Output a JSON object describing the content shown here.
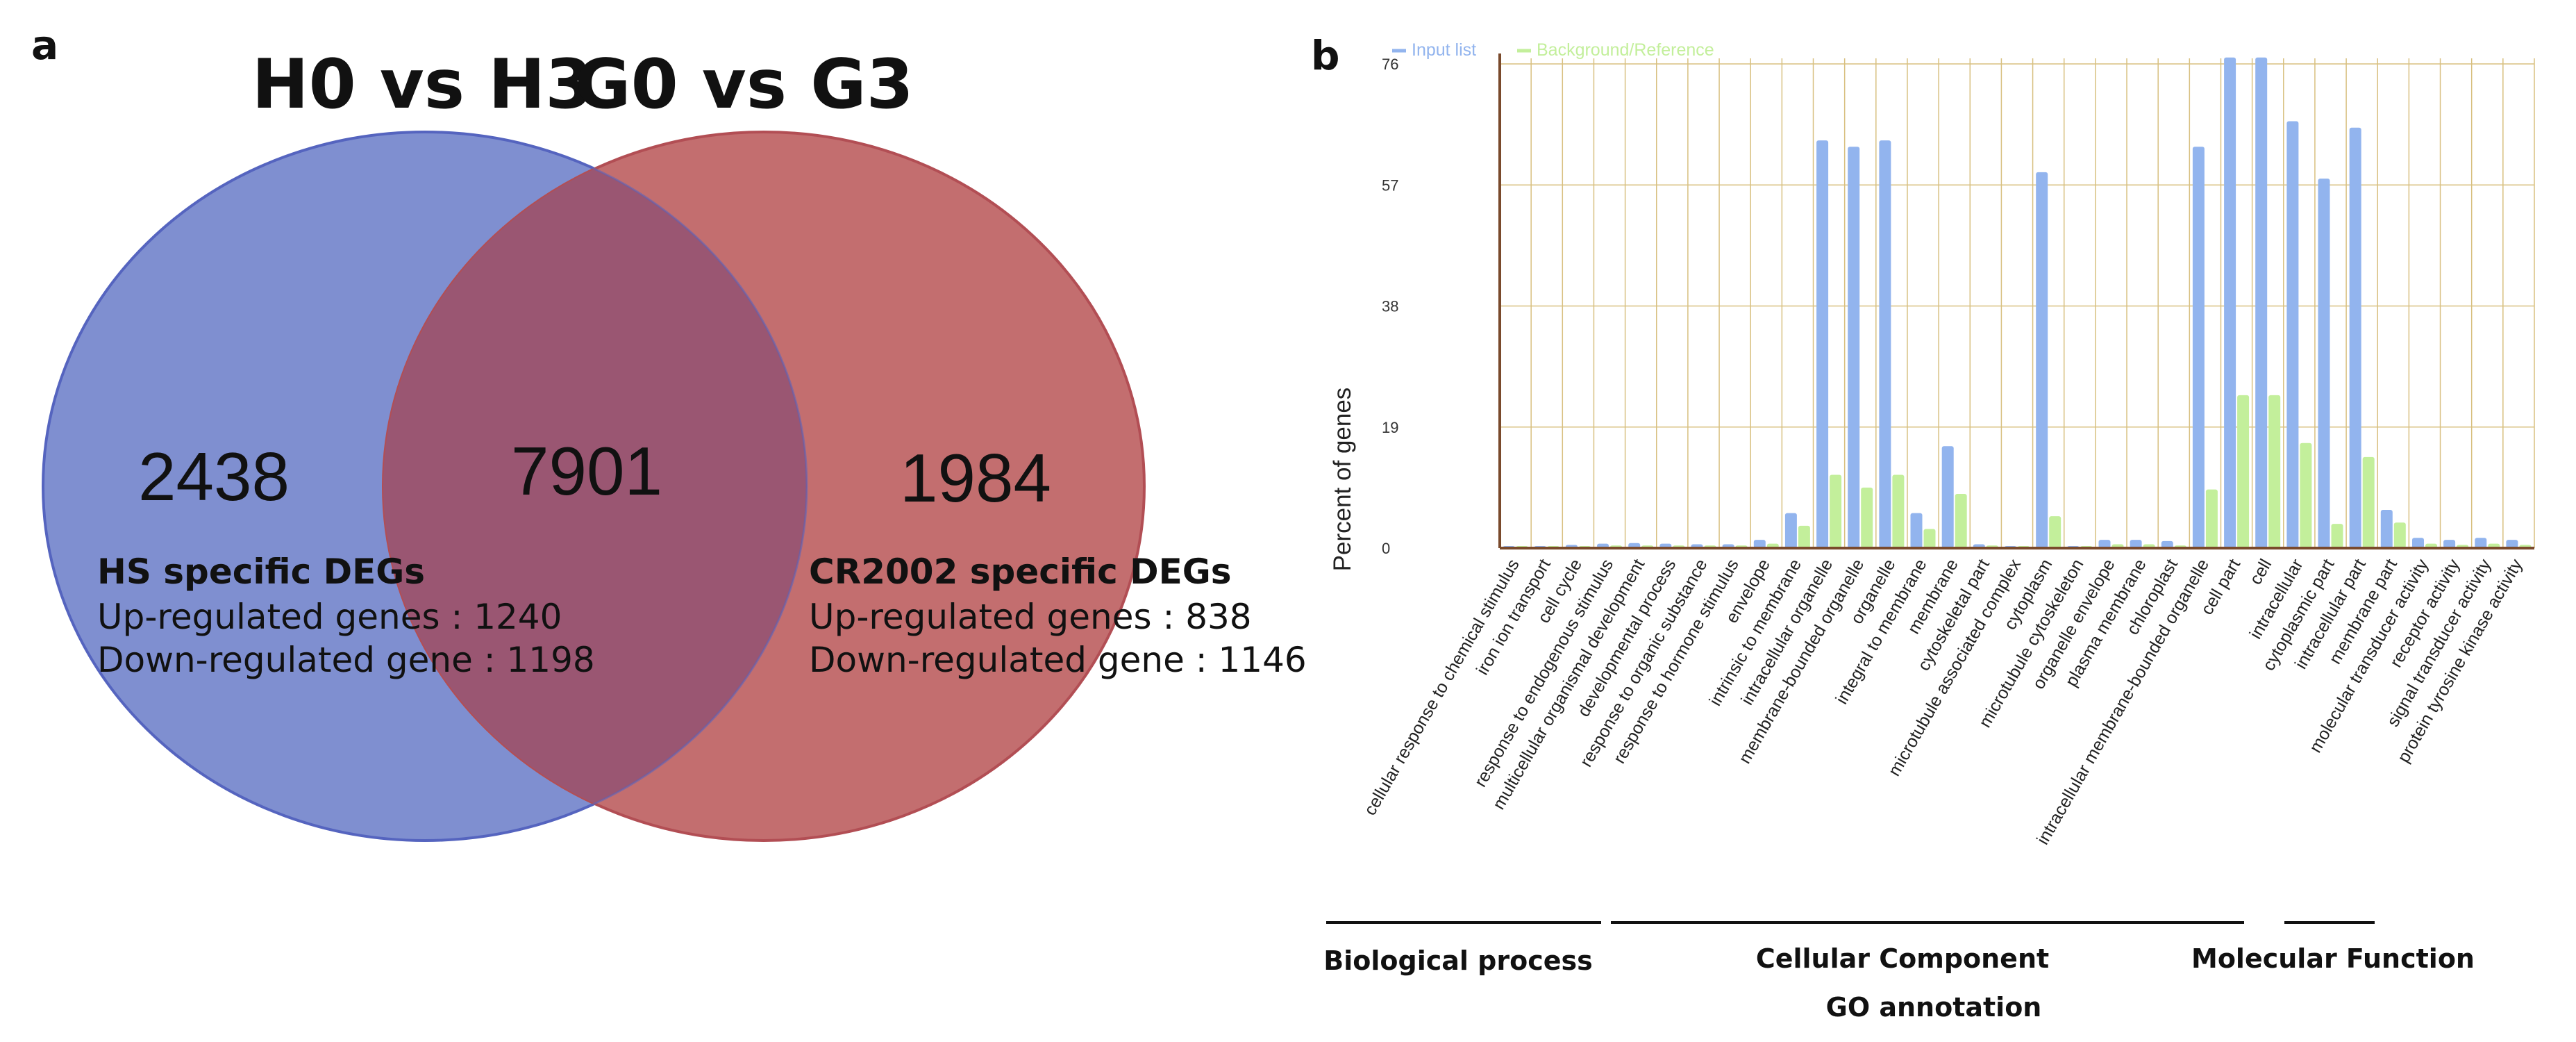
{
  "panel_a": {
    "panel_letter": "a",
    "left_set_title": "H0 vs H3",
    "right_set_title": "G0 vs G3",
    "left_count": "2438",
    "overlap_count": "7901",
    "right_count": "1984",
    "left_info": {
      "heading": "HS specific DEGs",
      "up_line": "Up-regulated genes : 1240",
      "down_line": "Down-regulated gene : 1198"
    },
    "right_info": {
      "heading": "CR2002 specific DEGs",
      "up_line": "Up-regulated genes : 838",
      "down_line": "Down-regulated gene : 1146"
    },
    "colors": {
      "left_circle": "#7f8fd0",
      "right_circle": "#c36e6f",
      "overlap": "#9a5672"
    }
  },
  "panel_b": {
    "panel_letter": "b",
    "legend": {
      "input": "Input list",
      "background": "Background/Reference"
    },
    "colors": {
      "input": "#92b4ee",
      "background": "#c3ef9b",
      "axis": "#7a4a2c",
      "grid": "#d8c080"
    },
    "groups": {
      "bp": "Biological process",
      "cc": "Cellular Component",
      "mf": "Molecular Function",
      "axis_title": "GO annotation"
    }
  },
  "chart_data": {
    "type": "bar",
    "title": "",
    "xlabel": "GO annotation",
    "ylabel": "Percent of genes",
    "ylim": [
      0,
      76
    ],
    "yticks": [
      0,
      19,
      38,
      57,
      76
    ],
    "grid": true,
    "legend_position": "top-left",
    "categories": [
      "cellular response to chemical stimulus",
      "iron ion transport",
      "cell cycle",
      "response to endogenous stimulus",
      "multicellular organismal development",
      "developmental process",
      "response to organic substance",
      "response to hormone stimulus",
      "envelope",
      "intrinsic to membrane",
      "intracellular organelle",
      "membrane-bounded organelle",
      "organelle",
      "integral to membrane",
      "membrane",
      "cytoskeletal part",
      "microtubule associated complex",
      "cytoplasm",
      "microtubule cytoskeleton",
      "organelle envelope",
      "plasma membrane",
      "chloroplast",
      "intracellular membrane-bounded organelle",
      "cell part",
      "cell",
      "intracellular",
      "cytoplasmic part",
      "intracellular part",
      "membrane part",
      "molecular transducer activity",
      "receptor activity",
      "signal transducer activity",
      "protein tyrosine kinase activity"
    ],
    "series": [
      {
        "name": "Input list",
        "values": [
          0.3,
          0.3,
          0.5,
          0.7,
          0.8,
          0.7,
          0.6,
          0.6,
          1.3,
          5.5,
          64,
          63,
          64,
          5.5,
          16,
          0.6,
          0.3,
          59,
          0.3,
          1.3,
          1.3,
          1.1,
          63,
          77,
          77,
          67,
          58,
          66,
          6,
          1.6,
          1.3,
          1.6,
          1.3
        ]
      },
      {
        "name": "Background/Reference",
        "values": [
          0.2,
          0.2,
          0.3,
          0.4,
          0.4,
          0.4,
          0.4,
          0.4,
          0.7,
          3.5,
          11.5,
          9.5,
          11.5,
          3,
          8.5,
          0.4,
          0.2,
          5,
          0.2,
          0.6,
          0.6,
          0.4,
          9.2,
          24,
          24,
          16.5,
          3.8,
          14.3,
          4,
          0.7,
          0.5,
          0.7,
          0.5
        ]
      }
    ]
  }
}
